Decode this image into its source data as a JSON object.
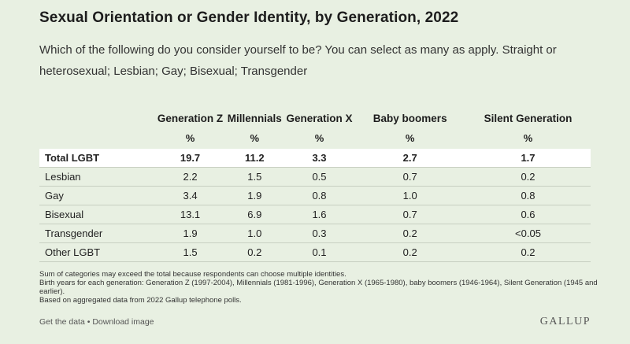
{
  "header": {
    "title": "Sexual Orientation or Gender Identity, by Generation, 2022",
    "subtitle": "Which of the following do you consider yourself to be? You can select as many as apply. Straight or heterosexual; Lesbian; Gay; Bisexual; Transgender"
  },
  "chart_data": {
    "type": "table",
    "columns": [
      "Generation Z",
      "Millennials",
      "Generation X",
      "Baby boomers",
      "Silent Generation"
    ],
    "units": [
      "%",
      "%",
      "%",
      "%",
      "%"
    ],
    "rows": [
      {
        "label": "Total LGBT",
        "values": [
          "19.7",
          "11.2",
          "3.3",
          "2.7",
          "1.7"
        ]
      },
      {
        "label": "Lesbian",
        "values": [
          "2.2",
          "1.5",
          "0.5",
          "0.7",
          "0.2"
        ]
      },
      {
        "label": "Gay",
        "values": [
          "3.4",
          "1.9",
          "0.8",
          "1.0",
          "0.8"
        ]
      },
      {
        "label": "Bisexual",
        "values": [
          "13.1",
          "6.9",
          "1.6",
          "0.7",
          "0.6"
        ]
      },
      {
        "label": "Transgender",
        "values": [
          "1.9",
          "1.0",
          "0.3",
          "0.2",
          "<0.05"
        ]
      },
      {
        "label": "Other LGBT",
        "values": [
          "1.5",
          "0.2",
          "0.1",
          "0.2",
          "0.2"
        ]
      }
    ]
  },
  "notes": [
    "Sum of categories may exceed the total because respondents can choose multiple identities.",
    "Birth years for each generation: Generation Z (1997-2004), Millennials (1981-1996), Generation X (1965-1980), baby boomers (1946-1964), Silent Generation (1945 and earlier).",
    "Based on aggregated data from 2022 Gallup telephone polls."
  ],
  "footer": {
    "get_data": "Get the data",
    "separator": " • ",
    "download": "Download image",
    "logo": "GALLUP"
  }
}
